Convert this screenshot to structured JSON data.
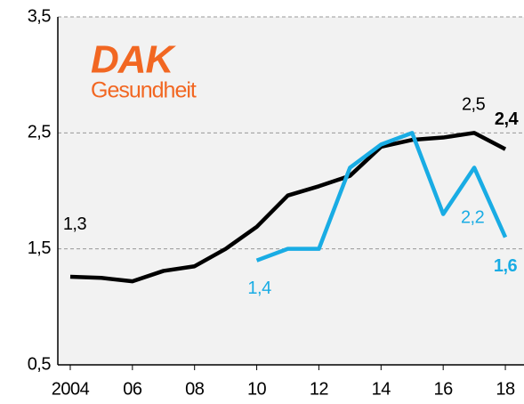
{
  "chart_data": {
    "type": "line",
    "logo": {
      "brand": "DAK",
      "text": "Gesundheit",
      "color": "#f26722"
    },
    "x": [
      2004,
      2005,
      2006,
      2007,
      2008,
      2009,
      2010,
      2011,
      2012,
      2013,
      2014,
      2015,
      2016,
      2017,
      2018
    ],
    "series": [
      {
        "color": "#000000",
        "values": [
          1.26,
          1.25,
          1.22,
          1.31,
          1.35,
          1.5,
          1.69,
          1.96,
          2.04,
          2.13,
          2.38,
          2.44,
          2.46,
          2.5,
          2.36
        ],
        "value_labels": [
          "1,3",
          null,
          null,
          null,
          null,
          null,
          null,
          null,
          null,
          null,
          null,
          null,
          null,
          "2,5",
          "2,4"
        ]
      },
      {
        "color": "#19ace4",
        "values": [
          null,
          null,
          null,
          null,
          null,
          null,
          1.4,
          1.5,
          1.5,
          2.2,
          2.4,
          2.5,
          1.8,
          2.2,
          1.6
        ],
        "value_labels": [
          null,
          null,
          null,
          null,
          null,
          null,
          "1,4",
          null,
          null,
          null,
          null,
          null,
          null,
          "2,2",
          "1,6"
        ]
      }
    ],
    "xlim": [
      2003.6,
      2018.6
    ],
    "xticks": [
      2004,
      {
        "value": 2006,
        "label": "06"
      },
      {
        "value": 2008,
        "label": "08"
      },
      {
        "value": 2010,
        "label": "10"
      },
      {
        "value": 2012,
        "label": "12"
      },
      {
        "value": 2014,
        "label": "14"
      },
      {
        "value": 2016,
        "label": "16"
      },
      {
        "value": 2018,
        "label": "18"
      }
    ],
    "ylim": [
      0.5,
      3.5
    ],
    "yticks": [
      {
        "value": 0.5,
        "label": "0,5"
      },
      {
        "value": 1.5,
        "label": "1,5"
      },
      {
        "value": 2.5,
        "label": "2,5"
      },
      {
        "value": 3.5,
        "label": "3,5"
      }
    ],
    "grid": true
  }
}
